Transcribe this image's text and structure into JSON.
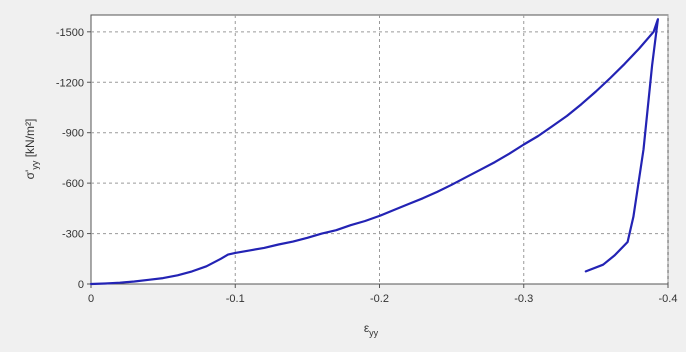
{
  "chart_data": {
    "type": "line",
    "title": "",
    "xlabel": "ε",
    "xlabel_sub": "yy",
    "ylabel": "σ'",
    "ylabel_sub": "yy",
    "ylabel_units": " [kN/m²]",
    "xlim": [
      0,
      -0.4
    ],
    "ylim": [
      0,
      -1600
    ],
    "x_ticks": [
      0,
      -0.1,
      -0.2,
      -0.3,
      -0.4
    ],
    "x_tick_labels": [
      "0",
      "-0.1",
      "-0.2",
      "-0.3",
      "-0.4"
    ],
    "y_ticks": [
      0,
      -300,
      -600,
      -900,
      -1200,
      -1500
    ],
    "y_tick_labels": [
      "0",
      "-300",
      "-600",
      "-900",
      "-1200",
      "-1500"
    ],
    "grid": true,
    "series": [
      {
        "color": "#2323b4",
        "x": [
          0,
          -0.01,
          -0.02,
          -0.03,
          -0.04,
          -0.05,
          -0.06,
          -0.07,
          -0.08,
          -0.09,
          -0.095,
          -0.1,
          -0.11,
          -0.12,
          -0.13,
          -0.14,
          -0.15,
          -0.16,
          -0.17,
          -0.18,
          -0.19,
          -0.2,
          -0.21,
          -0.22,
          -0.23,
          -0.24,
          -0.25,
          -0.26,
          -0.27,
          -0.28,
          -0.29,
          -0.3,
          -0.31,
          -0.32,
          -0.33,
          -0.34,
          -0.35,
          -0.36,
          -0.37,
          -0.38,
          -0.39,
          -0.393,
          -0.389,
          -0.383,
          -0.376,
          -0.372,
          -0.363,
          -0.355,
          -0.343
        ],
        "y": [
          0,
          -3,
          -8,
          -15,
          -25,
          -35,
          -52,
          -75,
          -105,
          -150,
          -175,
          -185,
          -200,
          -215,
          -235,
          -252,
          -275,
          -300,
          -320,
          -350,
          -375,
          -405,
          -440,
          -475,
          -510,
          -548,
          -590,
          -635,
          -680,
          -725,
          -775,
          -830,
          -880,
          -940,
          -1000,
          -1070,
          -1145,
          -1225,
          -1310,
          -1400,
          -1500,
          -1575,
          -1300,
          -800,
          -400,
          -250,
          -170,
          -115,
          -75
        ]
      }
    ]
  }
}
